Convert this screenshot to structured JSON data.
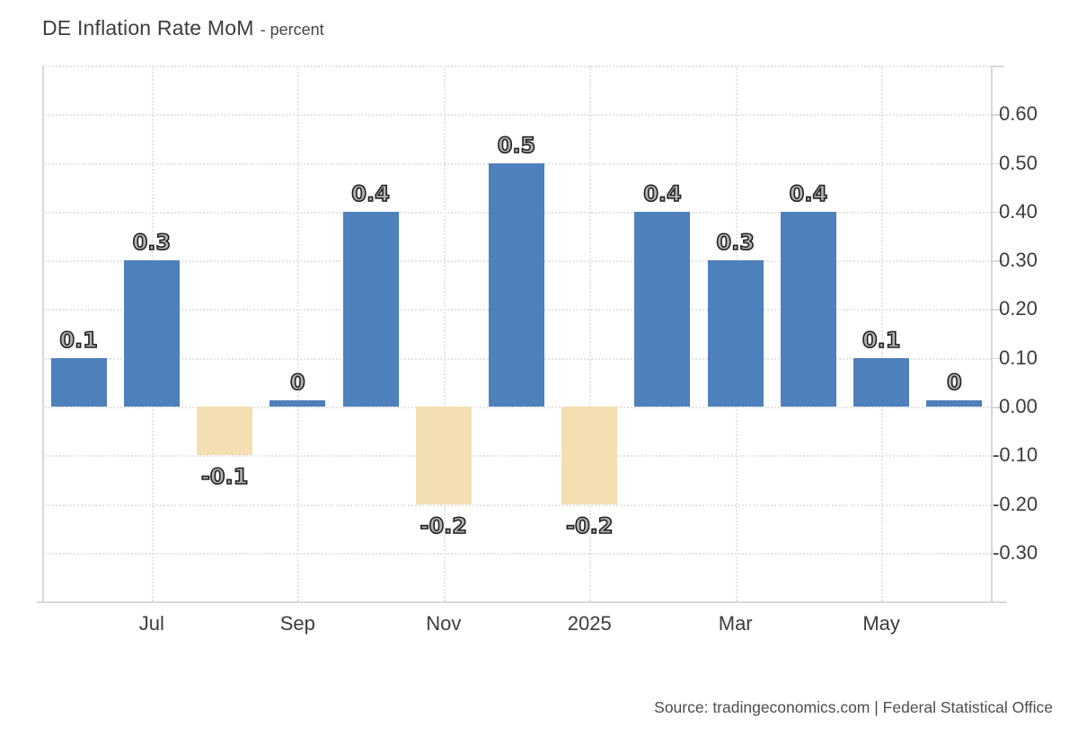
{
  "title": {
    "main": "DE Inflation Rate MoM",
    "unit": "- percent"
  },
  "source": "Source: tradingeconomics.com | Federal Statistical Office",
  "chart_data": {
    "type": "bar",
    "title": "DE Inflation Rate MoM - percent",
    "categories": [
      "Jun 2024",
      "Jul 2024",
      "Aug 2024",
      "Sep 2024",
      "Oct 2024",
      "Nov 2024",
      "Dec 2024",
      "Jan 2025",
      "Feb 2025",
      "Mar 2025",
      "Apr 2025",
      "May 2025",
      "Jun 2025"
    ],
    "values": [
      0.1,
      0.3,
      -0.1,
      0,
      0.4,
      -0.2,
      0.5,
      -0.2,
      0.4,
      0.3,
      0.4,
      0.1,
      0
    ],
    "bar_labels": [
      "0.1",
      "0.3",
      "-0.1",
      "0",
      "0.4",
      "-0.2",
      "0.5",
      "-0.2",
      "0.4",
      "0.3",
      "0.4",
      "0.1",
      "0"
    ],
    "x_ticks": [
      {
        "index": 1,
        "label": "Jul"
      },
      {
        "index": 3,
        "label": "Sep"
      },
      {
        "index": 5,
        "label": "Nov"
      },
      {
        "index": 7,
        "label": "2025"
      },
      {
        "index": 9,
        "label": "Mar"
      },
      {
        "index": 11,
        "label": "May"
      }
    ],
    "y_ticks": [
      {
        "value": 0.6,
        "label": "0.60"
      },
      {
        "value": 0.5,
        "label": "0.50"
      },
      {
        "value": 0.4,
        "label": "0.40"
      },
      {
        "value": 0.3,
        "label": "0.30"
      },
      {
        "value": 0.2,
        "label": "0.20"
      },
      {
        "value": 0.1,
        "label": "0.10"
      },
      {
        "value": 0.0,
        "label": "0.00"
      },
      {
        "value": -0.1,
        "label": "-0.10"
      },
      {
        "value": -0.2,
        "label": "-0.20"
      },
      {
        "value": -0.3,
        "label": "-0.30"
      }
    ],
    "y_gridlines": [
      0.7,
      0.6,
      0.5,
      0.4,
      0.3,
      0.2,
      0.1,
      0,
      -0.1,
      -0.2,
      -0.3
    ],
    "ylim": [
      -0.4,
      0.7
    ],
    "xlabel": "",
    "ylabel": "percent",
    "grid": true,
    "legend": "none",
    "colors": {
      "positive_bar": "#4e80bb",
      "negative_bar": "#f4dfb2",
      "gridline": "#e4e4e4",
      "axis": "#d8d8d8",
      "value_label_fill": "#b3b3b3",
      "value_label_stroke": "#1f1f1f",
      "tick_text": "#3c3c3c"
    }
  }
}
